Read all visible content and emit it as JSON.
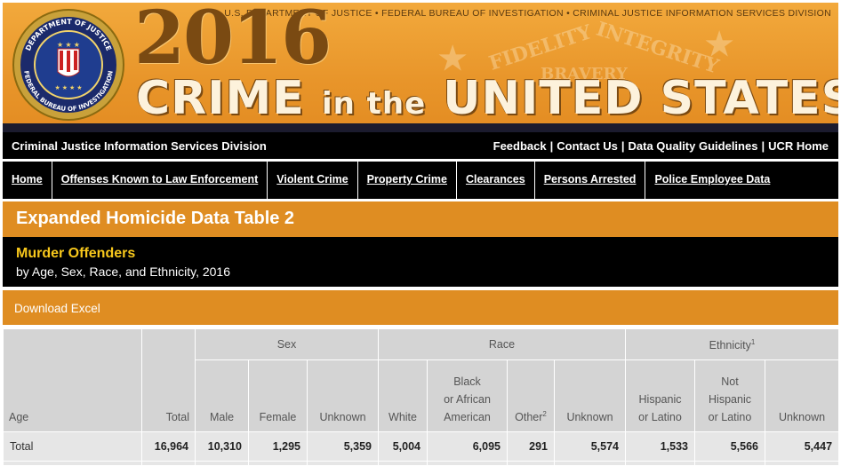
{
  "banner": {
    "agency_line": "U.S. DEPARTMENT OF JUSTICE • FEDERAL BUREAU OF INVESTIGATION • CRIMINAL JUSTICE INFORMATION SERVICES DIVISION",
    "year": "2016",
    "title_part1": "CRIME",
    "title_part2": "in the",
    "title_part3": "UNITED STATES",
    "seal_ring_top": "DEPARTMENT OF JUSTICE",
    "seal_ring_bottom": "FEDERAL BUREAU OF INVESTIGATION",
    "ribbon_words": [
      "FIDELITY",
      "BRAVERY",
      "INTEGRITY"
    ]
  },
  "cjis_bar": {
    "division": "Criminal Justice Information Services Division",
    "links": [
      "Feedback",
      "Contact Us",
      "Data Quality Guidelines",
      "UCR Home"
    ],
    "separator": "|"
  },
  "nav": {
    "tabs": [
      "Home",
      "Offenses Known to Law Enforcement",
      "Violent Crime",
      "Property Crime",
      "Clearances",
      "Persons Arrested",
      "Police Employee Data"
    ]
  },
  "page": {
    "title": "Expanded Homicide Data Table 2",
    "subtitle": "Murder Offenders",
    "subtitle_detail": "by Age, Sex, Race, and Ethnicity, 2016",
    "download": "Download Excel"
  },
  "table": {
    "groups": {
      "sex": "Sex",
      "race": "Race",
      "ethnicity": "Ethnicity",
      "ethnicity_note": "1"
    },
    "headers": {
      "age": "Age",
      "total": "Total",
      "male": "Male",
      "female": "Female",
      "sex_unknown": "Unknown",
      "white": "White",
      "black_l1": "Black",
      "black_l2": "or African",
      "black_l3": "American",
      "other": "Other",
      "other_note": "2",
      "race_unknown": "Unknown",
      "hisp_l1": "Hispanic",
      "hisp_l2": "or Latino",
      "nothisp_l1": "Not",
      "nothisp_l2": "Hispanic",
      "nothisp_l3": "or Latino",
      "eth_unknown": "Unknown"
    },
    "rows": [
      {
        "age": "Total",
        "total": "16,964",
        "male": "10,310",
        "female": "1,295",
        "sex_unknown": "5,359",
        "white": "5,004",
        "black": "6,095",
        "other": "291",
        "race_unknown": "5,574",
        "hispanic": "1,533",
        "not_hispanic": "5,566",
        "eth_unknown": "5,447"
      }
    ]
  },
  "colors": {
    "orange": "#df8d22",
    "black": "#000000",
    "yellow": "#f8c81c",
    "header_gray": "#d4d4d4"
  }
}
